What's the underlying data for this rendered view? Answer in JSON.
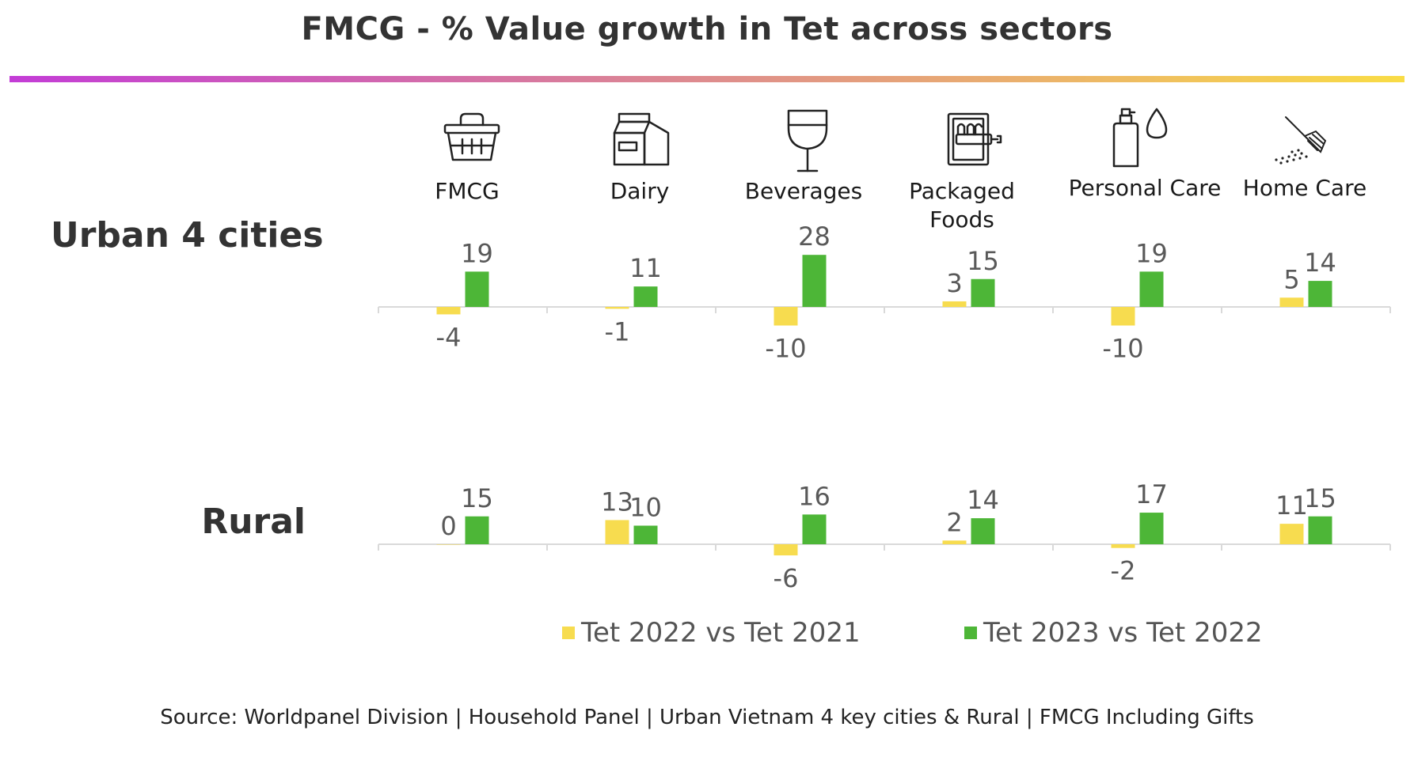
{
  "title": "FMCG - % Value growth in Tet across sectors",
  "source": "Source: Worldpanel Division | Household Panel | Urban Vietnam 4 key cities & Rural | FMCG Including Gifts",
  "colors": {
    "series1": "#f7dc4f",
    "series2": "#4db637",
    "axis": "#d9d9d9",
    "label": "#595959",
    "gradient_start": "#c33cd6",
    "gradient_end": "#f9dc45"
  },
  "chart_data": {
    "type": "bar",
    "categories": [
      "FMCG",
      "Dairy",
      "Beverages",
      "Packaged Foods",
      "Personal Care",
      "Home Care"
    ],
    "category_icons": [
      "basket-icon",
      "milk-carton-icon",
      "wine-glass-icon",
      "packaged-food-icon",
      "soap-bottle-icon",
      "spray-brush-icon"
    ],
    "legend": [
      "Tet 2022 vs Tet 2021",
      "Tet 2023 vs Tet 2022"
    ],
    "legend_placement": "bottom",
    "grid": false,
    "panels": [
      {
        "label": "Urban 4 cities",
        "series": [
          {
            "name": "Tet 2022 vs Tet 2021",
            "values": [
              -4,
              -1,
              -10,
              3,
              -10,
              5
            ]
          },
          {
            "name": "Tet 2023 vs Tet 2022",
            "values": [
              19,
              11,
              28,
              15,
              19,
              14
            ]
          }
        ]
      },
      {
        "label": "Rural",
        "series": [
          {
            "name": "Tet 2022 vs Tet 2021",
            "values": [
              0,
              13,
              -6,
              2,
              -2,
              11
            ]
          },
          {
            "name": "Tet 2023 vs Tet 2022",
            "values": [
              15,
              10,
              16,
              14,
              17,
              15
            ]
          }
        ]
      }
    ]
  }
}
